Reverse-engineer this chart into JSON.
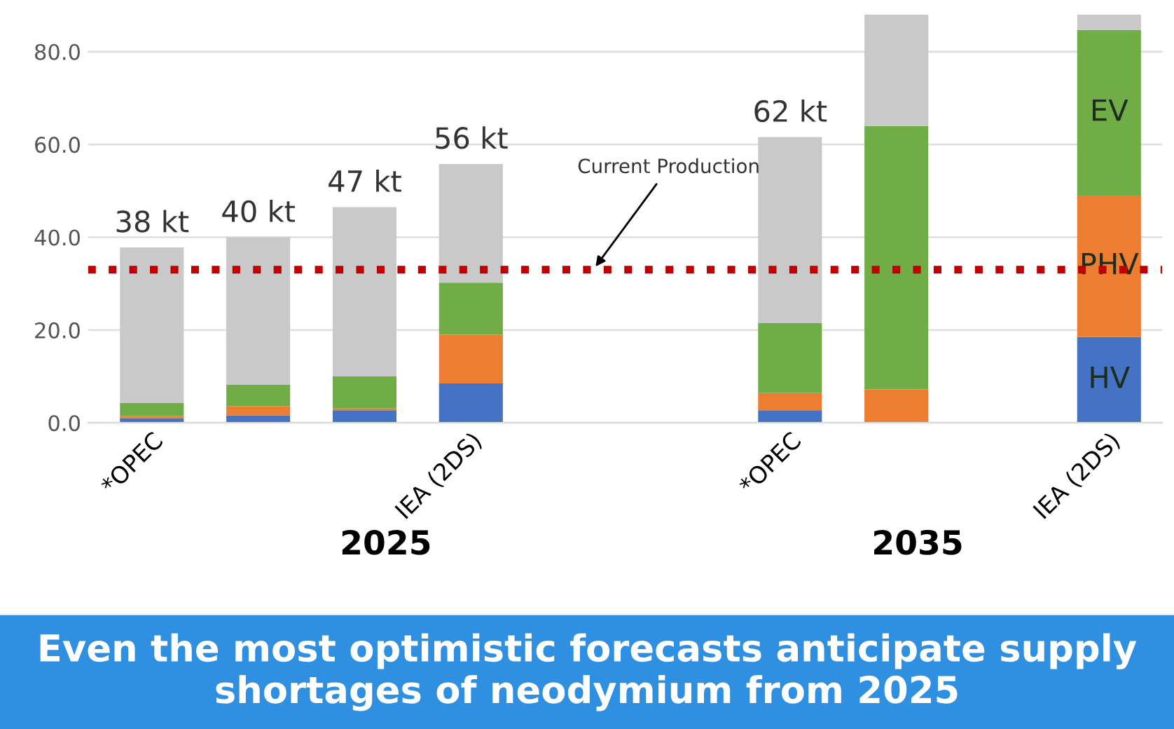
{
  "chart_data": {
    "type": "bar",
    "stacked": true,
    "title": "Even the most optimistic forecasts anticipate supply shortages of neodymium from 2025",
    "categories": [
      "*OPEC",
      null,
      null,
      "IEA (2DS)",
      null,
      null,
      "*OPEC",
      null,
      null,
      "IEA (2DS)"
    ],
    "series": [
      {
        "name": "HV",
        "color": "#4472c4",
        "values": [
          1.0,
          1.6,
          2.7,
          8.5,
          null,
          null,
          2.7,
          0,
          null,
          18.5
        ]
      },
      {
        "name": "PHV",
        "color": "#ed7d31",
        "values": [
          0.5,
          2.0,
          0.4,
          10.5,
          null,
          null,
          3.7,
          7.2,
          null,
          30.5
        ]
      },
      {
        "name": "EV",
        "color": "#70ad47",
        "values": [
          2.8,
          4.6,
          6.9,
          11.2,
          null,
          null,
          15.1,
          56.8,
          null,
          35.7
        ]
      },
      {
        "color": "#c9c9c9",
        "values": [
          33.5,
          31.8,
          36.5,
          25.6,
          null,
          null,
          40.1,
          24.0,
          null,
          3.3
        ]
      }
    ],
    "totals": [
      "38 kt",
      "40 kt",
      "47 kt",
      "56 kt",
      null,
      null,
      "62 kt",
      null,
      null,
      null
    ],
    "ylim": [
      0,
      88
    ],
    "yticks": [
      {
        "value": 0,
        "label": "0.0"
      },
      {
        "value": 20,
        "label": "20.0"
      },
      {
        "value": 40,
        "label": "40.0"
      },
      {
        "value": 60,
        "label": "60.0"
      },
      {
        "value": 80,
        "label": "80.0"
      }
    ],
    "grid": "y",
    "legend": false,
    "ref_lines": [
      {
        "axis": "y",
        "value": 33,
        "label": "Current Production",
        "color": "#c00000",
        "line_style": "dotted"
      }
    ],
    "annotations": [
      "2025",
      "2035"
    ]
  }
}
